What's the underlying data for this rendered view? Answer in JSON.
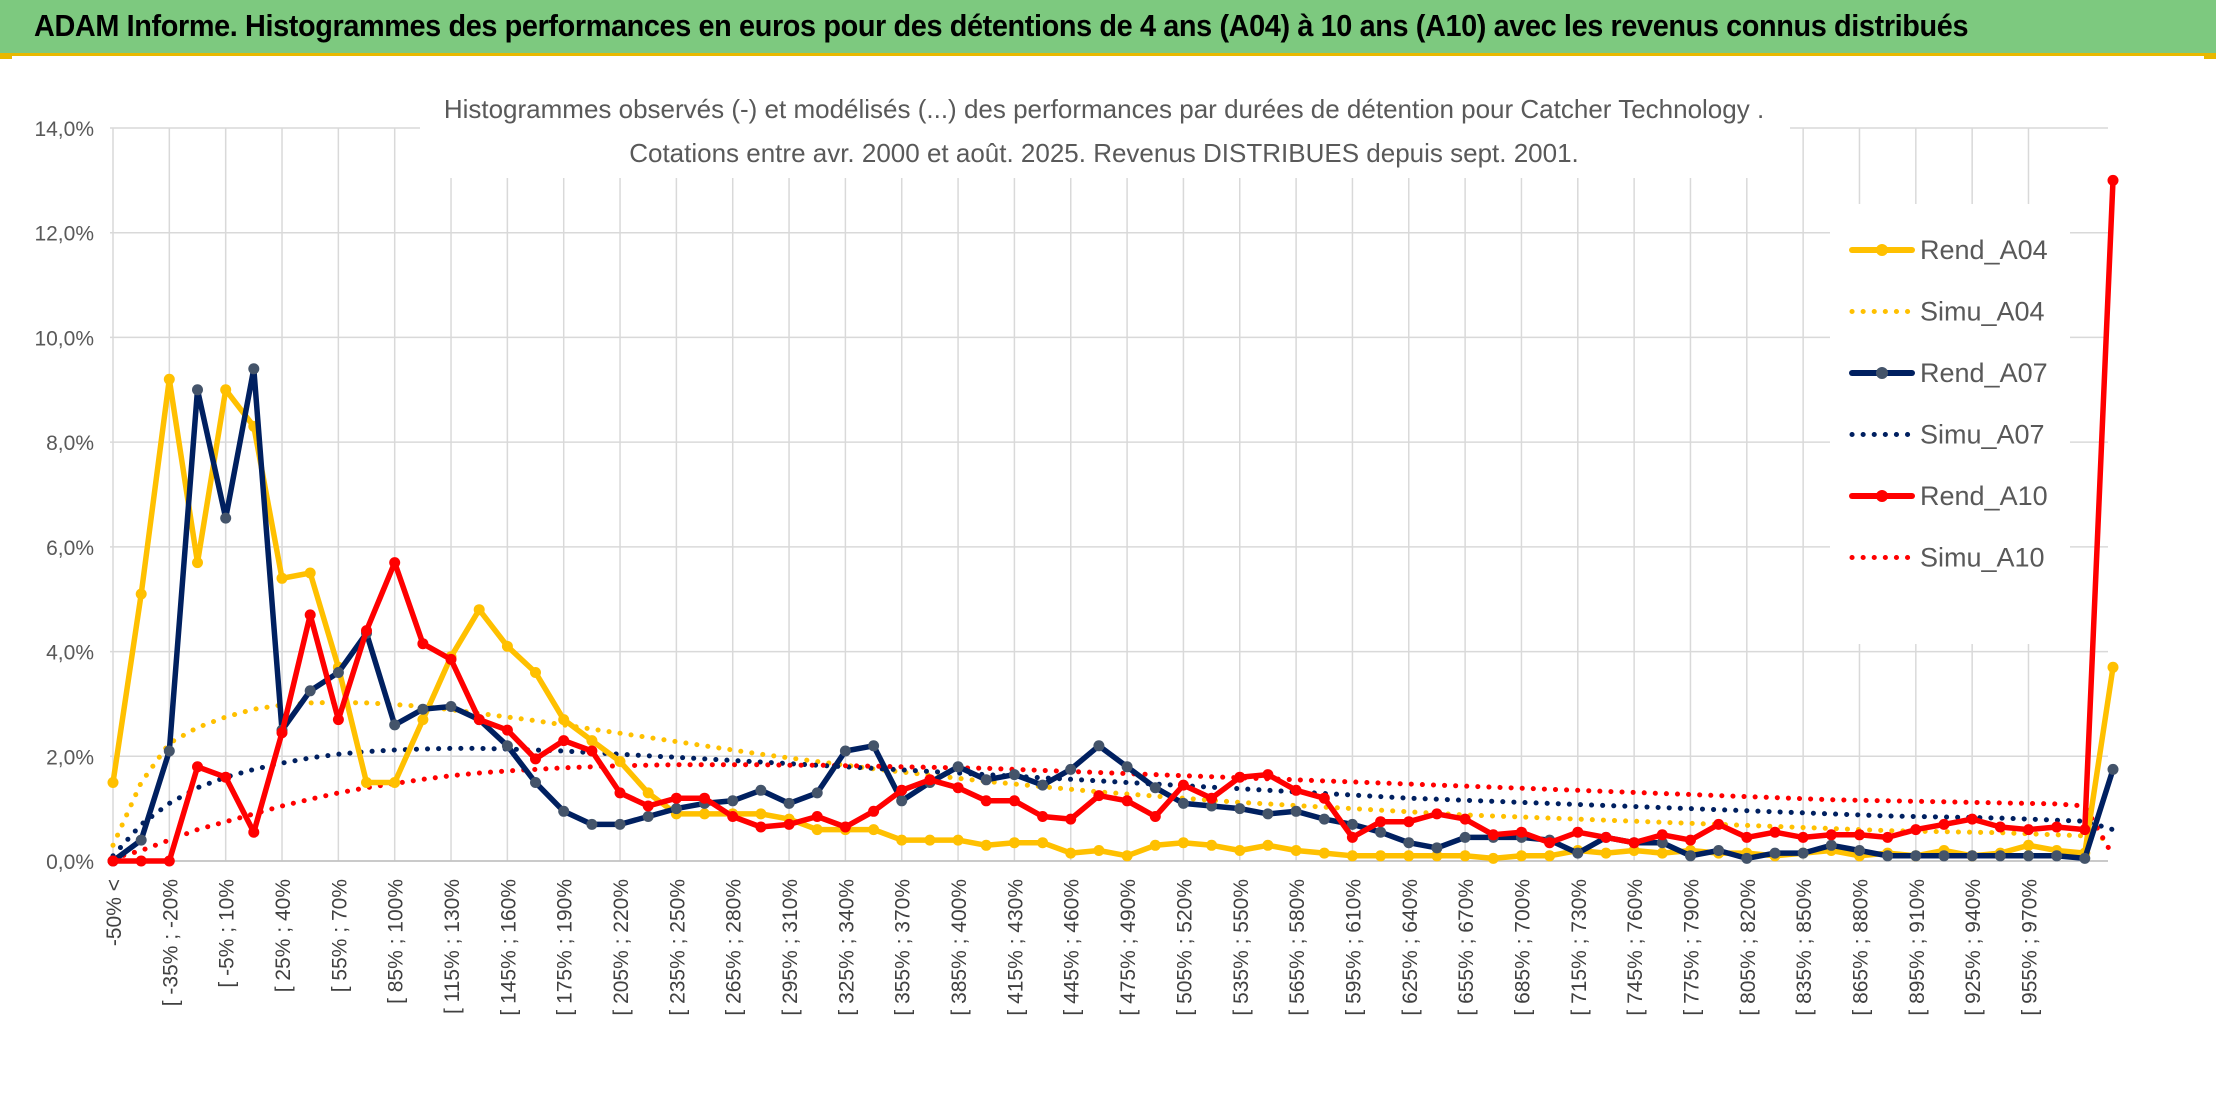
{
  "header": {
    "title": "ADAM Informe. Histogrammes des performances en euros pour des détentions de 4 ans (A04) à 10 ans (A10) avec les revenus connus distribués"
  },
  "colors": {
    "banner": "#7dc97f",
    "accent": "#e8b800",
    "a04": "#ffc000",
    "a07": "#002060",
    "a10": "#ff0000",
    "marker_a07": "#44546a",
    "grid": "#d9d9d9"
  },
  "chart_data": {
    "type": "line",
    "title": "Histogrammes observés (-) et modélisés (...) des performances par durées de détention pour Catcher Technology .",
    "subtitle": "Cotations entre avr. 2000 et août. 2025. Revenus DISTRIBUES depuis sept. 2001.",
    "ylim": [
      0,
      14
    ],
    "y_ticks": [
      "0,0%",
      "2,0%",
      "4,0%",
      "6,0%",
      "8,0%",
      "10,0%",
      "12,0%",
      "14,0%"
    ],
    "x_labels": [
      "-50% <",
      "[ -35% ; -20%",
      "[ -5% ; 10%",
      "[ 25% ; 40%",
      "[ 55% ; 70%",
      "[ 85% ; 100%",
      "[ 115% ; 130%",
      "[ 145% ; 160%",
      "[ 175% ; 190%",
      "[ 205% ; 220%",
      "[ 235% ; 250%",
      "[ 265% ; 280%",
      "[ 295% ; 310%",
      "[ 325% ; 340%",
      "[ 355% ; 370%",
      "[ 385% ; 400%",
      "[ 415% ; 430%",
      "[ 445% ; 460%",
      "[ 475% ; 490%",
      "[ 505% ; 520%",
      "[ 535% ; 550%",
      "[ 565% ; 580%",
      "[ 595% ; 610%",
      "[ 625% ; 640%",
      "[ 655% ; 670%",
      "[ 685% ; 700%",
      "[ 715% ; 730%",
      "[ 745% ; 760%",
      "[ 775% ; 790%",
      "[ 805% ; 820%",
      "[ 835% ; 850%",
      "[ 865% ; 880%",
      "[ 895% ; 910%",
      "[ 925% ; 940%",
      "[ 955% ; 970%"
    ],
    "legend_position": "right",
    "series": [
      {
        "name": "Rend_A04",
        "style": "solid",
        "color": "#ffc000",
        "markers": true,
        "values": [
          1.5,
          5.1,
          9.2,
          5.7,
          9.0,
          8.3,
          5.4,
          5.5,
          3.7,
          1.5,
          1.5,
          2.7,
          3.9,
          4.8,
          4.1,
          3.6,
          2.7,
          2.3,
          1.9,
          1.3,
          0.9,
          0.9,
          0.9,
          0.9,
          0.8,
          0.6,
          0.6,
          0.6,
          0.4,
          0.4,
          0.4,
          0.3,
          0.35,
          0.35,
          0.15,
          0.2,
          0.1,
          0.3,
          0.35,
          0.3,
          0.2,
          0.3,
          0.2,
          0.15,
          0.1,
          0.1,
          0.1,
          0.1,
          0.1,
          0.05,
          0.1,
          0.1,
          0.2,
          0.15,
          0.2,
          0.15,
          0.2,
          0.15,
          0.15,
          0.1,
          0.15,
          0.2,
          0.1,
          0.15,
          0.1,
          0.2,
          0.1,
          0.15,
          0.3,
          0.2,
          0.15,
          3.7
        ]
      },
      {
        "name": "Simu_A04",
        "style": "dotted",
        "color": "#ffc000",
        "markers": false,
        "values": [
          0.3,
          1.5,
          2.25,
          2.55,
          2.75,
          2.9,
          2.98,
          3.02,
          3.03,
          3.02,
          2.99,
          2.95,
          2.89,
          2.82,
          2.75,
          2.68,
          2.6,
          2.52,
          2.44,
          2.36,
          2.28,
          2.2,
          2.12,
          2.04,
          1.97,
          1.9,
          1.83,
          1.76,
          1.7,
          1.64,
          1.58,
          1.52,
          1.47,
          1.42,
          1.37,
          1.32,
          1.28,
          1.24,
          1.2,
          1.16,
          1.12,
          1.09,
          1.06,
          1.03,
          1.0,
          0.97,
          0.94,
          0.91,
          0.88,
          0.86,
          0.84,
          0.82,
          0.8,
          0.78,
          0.76,
          0.74,
          0.72,
          0.7,
          0.68,
          0.66,
          0.64,
          0.62,
          0.6,
          0.58,
          0.57,
          0.56,
          0.55,
          0.54,
          0.52,
          0.5,
          0.48,
          0.4
        ]
      },
      {
        "name": "Rend_A07",
        "style": "solid",
        "color": "#002060",
        "markers": true,
        "values": [
          0.0,
          0.4,
          2.1,
          9.0,
          6.55,
          9.4,
          2.5,
          3.25,
          3.6,
          4.35,
          2.6,
          2.9,
          2.95,
          2.7,
          2.2,
          1.5,
          0.95,
          0.7,
          0.7,
          0.85,
          1.0,
          1.1,
          1.15,
          1.35,
          1.1,
          1.3,
          2.1,
          2.2,
          1.15,
          1.5,
          1.8,
          1.55,
          1.65,
          1.45,
          1.75,
          2.2,
          1.8,
          1.4,
          1.1,
          1.05,
          1.0,
          0.9,
          0.95,
          0.8,
          0.7,
          0.55,
          0.35,
          0.25,
          0.45,
          0.45,
          0.45,
          0.4,
          0.15,
          0.45,
          0.35,
          0.35,
          0.1,
          0.2,
          0.05,
          0.15,
          0.15,
          0.3,
          0.2,
          0.1,
          0.1,
          0.1,
          0.1,
          0.1,
          0.1,
          0.1,
          0.05,
          1.75
        ]
      },
      {
        "name": "Simu_A07",
        "style": "dotted",
        "color": "#002060",
        "markers": false,
        "values": [
          0.1,
          0.7,
          1.1,
          1.4,
          1.6,
          1.75,
          1.87,
          1.97,
          2.04,
          2.09,
          2.12,
          2.14,
          2.15,
          2.15,
          2.14,
          2.12,
          2.1,
          2.07,
          2.04,
          2.01,
          1.98,
          1.95,
          1.92,
          1.89,
          1.86,
          1.83,
          1.8,
          1.77,
          1.74,
          1.71,
          1.68,
          1.65,
          1.62,
          1.59,
          1.56,
          1.53,
          1.5,
          1.47,
          1.44,
          1.41,
          1.38,
          1.35,
          1.32,
          1.29,
          1.26,
          1.23,
          1.2,
          1.18,
          1.16,
          1.14,
          1.12,
          1.1,
          1.08,
          1.06,
          1.04,
          1.02,
          1.0,
          0.98,
          0.96,
          0.94,
          0.92,
          0.9,
          0.88,
          0.86,
          0.85,
          0.84,
          0.83,
          0.82,
          0.8,
          0.78,
          0.76,
          0.6
        ]
      },
      {
        "name": "Rend_A10",
        "style": "solid",
        "color": "#ff0000",
        "markers": true,
        "values": [
          0.0,
          0.0,
          0.0,
          1.8,
          1.6,
          0.55,
          2.45,
          4.7,
          2.7,
          4.4,
          5.7,
          4.15,
          3.85,
          2.7,
          2.5,
          1.95,
          2.3,
          2.1,
          1.3,
          1.05,
          1.2,
          1.2,
          0.85,
          0.65,
          0.7,
          0.85,
          0.65,
          0.95,
          1.35,
          1.55,
          1.4,
          1.15,
          1.15,
          0.85,
          0.8,
          1.25,
          1.15,
          0.85,
          1.45,
          1.2,
          1.6,
          1.65,
          1.35,
          1.2,
          0.45,
          0.75,
          0.75,
          0.9,
          0.8,
          0.5,
          0.55,
          0.35,
          0.55,
          0.45,
          0.35,
          0.5,
          0.4,
          0.7,
          0.45,
          0.55,
          0.45,
          0.5,
          0.5,
          0.45,
          0.6,
          0.7,
          0.8,
          0.65,
          0.6,
          0.65,
          0.6,
          13.0
        ]
      },
      {
        "name": "Simu_A10",
        "style": "dotted",
        "color": "#ff0000",
        "markers": false,
        "values": [
          0.05,
          0.2,
          0.4,
          0.6,
          0.75,
          0.9,
          1.05,
          1.18,
          1.3,
          1.4,
          1.48,
          1.56,
          1.63,
          1.68,
          1.72,
          1.75,
          1.78,
          1.8,
          1.82,
          1.83,
          1.84,
          1.84,
          1.84,
          1.84,
          1.83,
          1.83,
          1.82,
          1.81,
          1.8,
          1.79,
          1.78,
          1.77,
          1.75,
          1.73,
          1.71,
          1.69,
          1.67,
          1.65,
          1.63,
          1.61,
          1.59,
          1.57,
          1.55,
          1.53,
          1.51,
          1.49,
          1.47,
          1.45,
          1.43,
          1.41,
          1.39,
          1.37,
          1.35,
          1.33,
          1.31,
          1.29,
          1.27,
          1.25,
          1.23,
          1.21,
          1.19,
          1.17,
          1.16,
          1.15,
          1.14,
          1.13,
          1.12,
          1.11,
          1.1,
          1.09,
          1.05,
          0.1
        ]
      }
    ]
  }
}
